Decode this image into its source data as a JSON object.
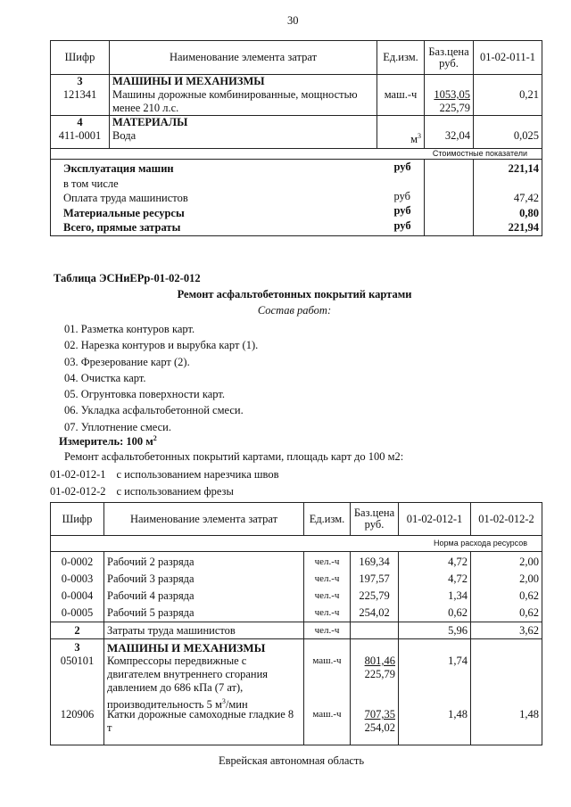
{
  "page_number": "30",
  "table1": {
    "headers": [
      "Шифр",
      "Наименование элемента затрат",
      "Ед.изм.",
      "Баз.цена руб.",
      "01-02-011-1"
    ],
    "sections": [
      {
        "num": "3",
        "title": "МАШИНЫ И МЕХАНИЗМЫ",
        "code": "121341",
        "name": "Машины дорожные комбинированные, мощностью менее 210 л.с.",
        "unit": "маш.-ч",
        "price_top": "1053,05",
        "price_bottom": "225,79",
        "value": "0,21"
      },
      {
        "num": "4",
        "title": "МАТЕРИАЛЫ",
        "code": "411-0001",
        "name": "Вода",
        "unit": "м",
        "unit_sup": "3",
        "price_top": "32,04",
        "value": "0,025"
      }
    ],
    "band": "Стоимостные показатели",
    "summary": [
      {
        "label": "Эксплуатация машин",
        "unit": "руб",
        "value": "221,14",
        "bold": true
      },
      {
        "label": "в том числе",
        "unit": "",
        "value": ""
      },
      {
        "label": "Оплата труда машинистов",
        "unit": "руб",
        "value": "47,42"
      },
      {
        "label": "Материальные ресурсы",
        "unit": "руб",
        "value": "0,80",
        "bold": true
      },
      {
        "label": "Всего, прямые затраты",
        "unit": "руб",
        "value": "221,94",
        "bold": true
      }
    ]
  },
  "section": {
    "table_label": "Таблица  ЭСНиЕРр-01-02-012",
    "title": "Ремонт асфальтобетонных покрытий картами",
    "subtitle": "Состав работ:",
    "steps": [
      "01. Разметка контуров карт.",
      "02. Нарезка контуров и вырубка карт (1).",
      "03. Фрезерование карт (2).",
      "04. Очистка карт.",
      "05. Огрунтовка поверхности карт.",
      "06. Укладка асфальтобетонной смеси.",
      "07. Уплотнение смеси."
    ],
    "meter": "Измеритель: 100 м",
    "meter_sup": "2",
    "description": "Ремонт асфальтобетонных покрытий картами, площадь карт до 100 м2:",
    "variants": [
      {
        "code": "01-02-012-1",
        "text": "с использованием нарезчика швов"
      },
      {
        "code": "01-02-012-2",
        "text": "с использованием фрезы"
      }
    ]
  },
  "table2": {
    "headers": [
      "Шифр",
      "Наименование элемента затрат",
      "Ед.изм.",
      "Баз.цена руб.",
      "01-02-012-1",
      "01-02-012-2"
    ],
    "band": "Норма расхода ресурсов",
    "workers": [
      {
        "code": "0-0002",
        "name": "Рабочий 2 разряда",
        "unit": "чел.-ч",
        "price": "169,34",
        "v1": "4,72",
        "v2": "2,00"
      },
      {
        "code": "0-0003",
        "name": "Рабочий 3 разряда",
        "unit": "чел.-ч",
        "price": "197,57",
        "v1": "4,72",
        "v2": "2,00"
      },
      {
        "code": "0-0004",
        "name": "Рабочий 4 разряда",
        "unit": "чел.-ч",
        "price": "225,79",
        "v1": "1,34",
        "v2": "0,62"
      },
      {
        "code": "0-0005",
        "name": "Рабочий 5 разряда",
        "unit": "чел.-ч",
        "price": "254,02",
        "v1": "0,62",
        "v2": "0,62"
      }
    ],
    "operators": {
      "code": "2",
      "name": "Затраты труда машинистов",
      "unit": "чел.-ч",
      "v1": "5,96",
      "v2": "3,62"
    },
    "machines": {
      "num": "3",
      "title": "МАШИНЫ И МЕХАНИЗМЫ",
      "items": [
        {
          "code": "050101",
          "name": "Компрессоры передвижные с двигателем внутреннего сгорания давлением до 686 кПа (7 ат), производительность 5 м",
          "name_sup": "3",
          "name_tail": "/мин",
          "unit": "маш.-ч",
          "price_top": "801,46",
          "price_bottom": "225,79",
          "v1": "1,74",
          "v2": ""
        },
        {
          "code": "120906",
          "name": "Катки дорожные самоходные гладкие 8 т",
          "unit": "маш.-ч",
          "price_top": "707,35",
          "price_bottom": "254,02",
          "v1": "1,48",
          "v2": "1,48"
        }
      ]
    }
  },
  "footer": "Еврейская автономная область"
}
